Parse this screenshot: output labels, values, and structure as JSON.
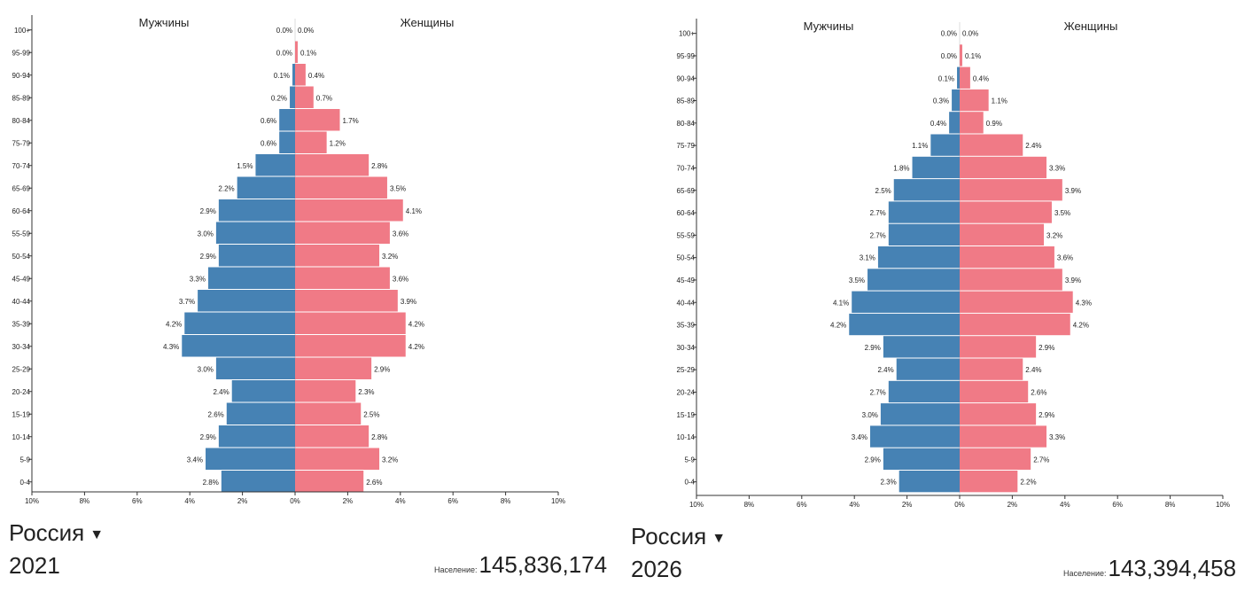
{
  "colors": {
    "male": "#4682b4",
    "female": "#f07a86"
  },
  "chart_data": [
    {
      "type": "bar",
      "orientation": "horizontal-pyramid",
      "legend": {
        "male": "Мужчины",
        "female": "Женщины"
      },
      "categories": [
        "100+",
        "95-99",
        "90-94",
        "85-89",
        "80-84",
        "75-79",
        "70-74",
        "65-69",
        "60-64",
        "55-59",
        "50-54",
        "45-49",
        "40-44",
        "35-39",
        "30-34",
        "25-29",
        "20-24",
        "15-19",
        "10-14",
        "5-9",
        "0-4"
      ],
      "series": [
        {
          "name": "Мужчины",
          "values": [
            0.0,
            0.0,
            0.1,
            0.2,
            0.6,
            0.6,
            1.5,
            2.2,
            2.9,
            3.0,
            2.9,
            3.3,
            3.7,
            4.2,
            4.3,
            3.0,
            2.4,
            2.6,
            2.9,
            3.4,
            2.8
          ]
        },
        {
          "name": "Женщины",
          "values": [
            0.0,
            0.1,
            0.4,
            0.7,
            1.7,
            1.2,
            2.8,
            3.5,
            4.1,
            3.6,
            3.2,
            3.6,
            3.9,
            4.2,
            4.2,
            2.9,
            2.3,
            2.5,
            2.8,
            3.2,
            2.6
          ]
        }
      ],
      "x_ticks": [
        "10%",
        "8%",
        "6%",
        "4%",
        "2%",
        "0%",
        "2%",
        "4%",
        "6%",
        "8%",
        "10%"
      ],
      "xlim": [
        -10,
        10
      ],
      "value_suffix": "%"
    },
    {
      "type": "bar",
      "orientation": "horizontal-pyramid",
      "legend": {
        "male": "Мужчины",
        "female": "Женщины"
      },
      "categories": [
        "100+",
        "95-99",
        "90-94",
        "85-89",
        "80-84",
        "75-79",
        "70-74",
        "65-69",
        "60-64",
        "55-59",
        "50-54",
        "45-49",
        "40-44",
        "35-39",
        "30-34",
        "25-29",
        "20-24",
        "15-19",
        "10-14",
        "5-9",
        "0-4"
      ],
      "series": [
        {
          "name": "Мужчины",
          "values": [
            0.0,
            0.0,
            0.1,
            0.3,
            0.4,
            1.1,
            1.8,
            2.5,
            2.7,
            2.7,
            3.1,
            3.5,
            4.1,
            4.2,
            2.9,
            2.4,
            2.7,
            3.0,
            3.4,
            2.9,
            2.3
          ]
        },
        {
          "name": "Женщины",
          "values": [
            0.0,
            0.1,
            0.4,
            1.1,
            0.9,
            2.4,
            3.3,
            3.9,
            3.5,
            3.2,
            3.6,
            3.9,
            4.3,
            4.2,
            2.9,
            2.4,
            2.6,
            2.9,
            3.3,
            2.7,
            2.2
          ]
        }
      ],
      "x_ticks": [
        "10%",
        "8%",
        "6%",
        "4%",
        "2%",
        "0%",
        "2%",
        "4%",
        "6%",
        "8%",
        "10%"
      ],
      "xlim": [
        -10,
        10
      ],
      "value_suffix": "%"
    }
  ],
  "panels": [
    {
      "country": "Россия",
      "year": "2021",
      "population_label": "Население:",
      "population_value": "145,836,174"
    },
    {
      "country": "Россия",
      "year": "2026",
      "population_label": "Население:",
      "population_value": "143,394,458"
    }
  ]
}
